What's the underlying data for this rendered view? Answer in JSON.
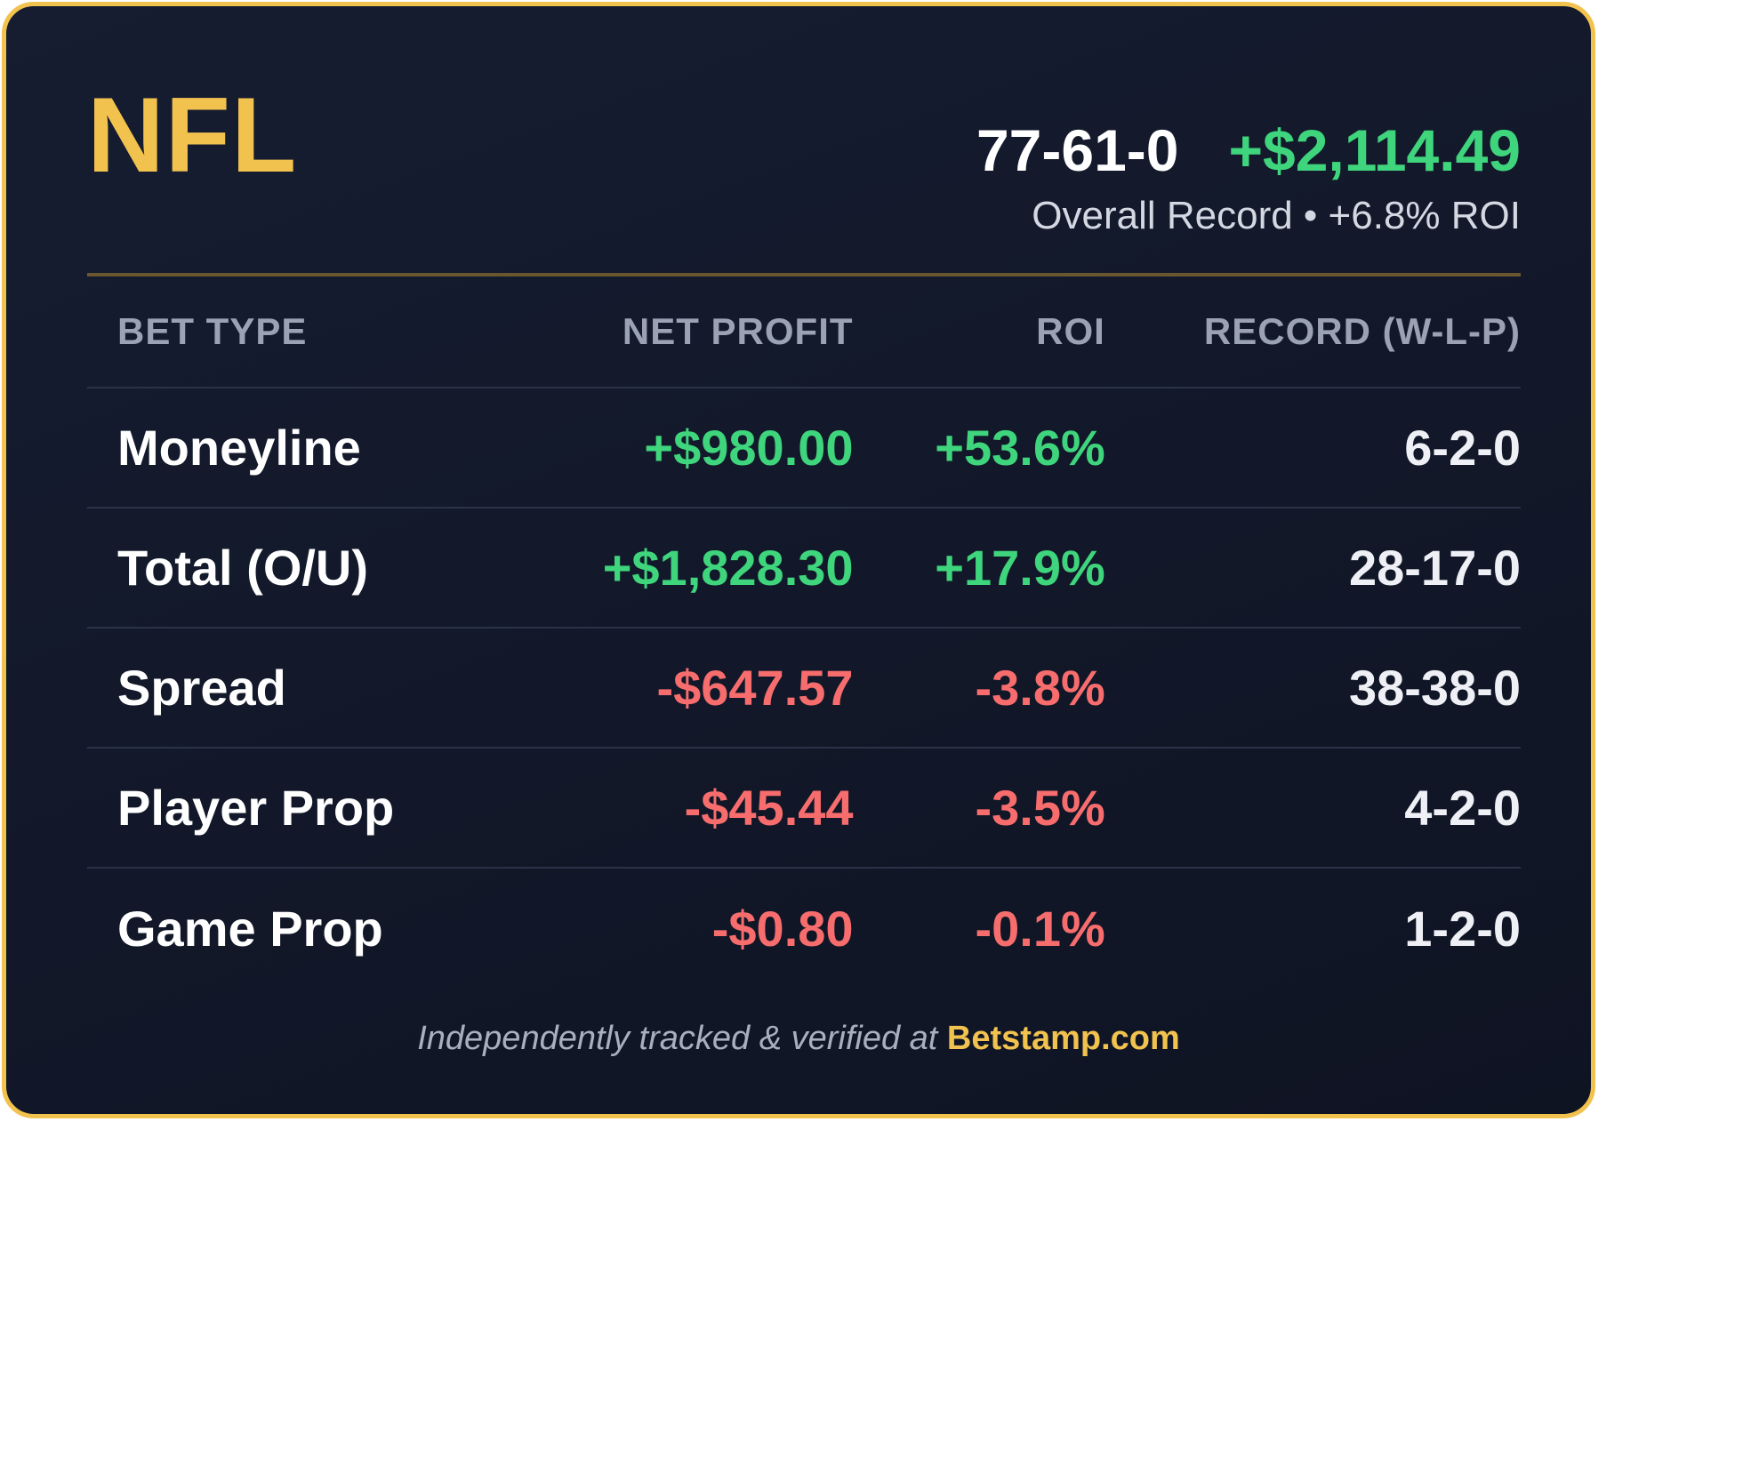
{
  "card": {
    "league": "NFL",
    "overall_record": "77-61-0",
    "overall_profit": "+$2,114.49",
    "overall_subtitle": "Overall Record • +6.8% ROI"
  },
  "table": {
    "headers": {
      "bet_type": "BET TYPE",
      "net_profit": "NET PROFIT",
      "roi": "ROI",
      "record": "RECORD (W-L-P)"
    },
    "rows": [
      {
        "bet_type": "Moneyline",
        "net_profit": "+$980.00",
        "roi": "+53.6%",
        "record": "6-2-0"
      },
      {
        "bet_type": "Total (O/U)",
        "net_profit": "+$1,828.30",
        "roi": "+17.9%",
        "record": "28-17-0"
      },
      {
        "bet_type": "Spread",
        "net_profit": "-$647.57",
        "roi": "-3.8%",
        "record": "38-38-0"
      },
      {
        "bet_type": "Player Prop",
        "net_profit": "-$45.44",
        "roi": "-3.5%",
        "record": "4-2-0"
      },
      {
        "bet_type": "Game Prop",
        "net_profit": "-$0.80",
        "roi": "-0.1%",
        "record": "1-2-0"
      }
    ]
  },
  "footer": {
    "text": "Independently tracked & verified at ",
    "link": "Betstamp.com"
  },
  "colors": {
    "accent": "#f2c24f",
    "positive": "#3ed57c",
    "negative": "#f76d6d",
    "background": "#131a2c"
  }
}
